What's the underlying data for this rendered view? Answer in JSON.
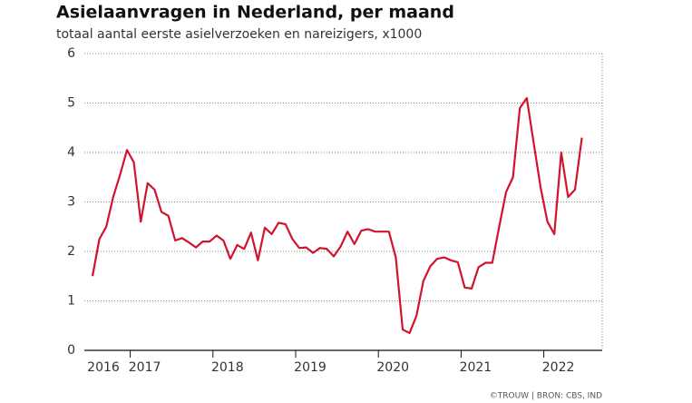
{
  "chart_data": {
    "type": "line",
    "title": "Asielaanvragen in Nederland, per maand",
    "subtitle": "totaal aantal eerste asielverzoeken en nareizigers, x1000",
    "source": "©TROUW | BRON: CBS, IND",
    "categories": [
      "2016",
      null,
      null,
      null,
      null,
      null,
      "2017",
      null,
      null,
      null,
      null,
      null,
      null,
      null,
      null,
      null,
      null,
      null,
      "2018",
      null,
      null,
      null,
      null,
      null,
      null,
      null,
      null,
      null,
      null,
      null,
      "2019",
      null,
      null,
      null,
      null,
      null,
      null,
      null,
      null,
      null,
      null,
      null,
      "2020",
      null,
      null,
      null,
      null,
      null,
      null,
      null,
      null,
      null,
      null,
      null,
      "2021",
      null,
      null,
      null,
      null,
      null,
      null,
      null,
      null,
      null,
      null,
      null,
      "2022",
      null,
      null,
      null,
      null,
      null
    ],
    "series": [
      {
        "name": "Asielaanvragen",
        "color": "#d0142c",
        "values": [
          1.5,
          2.25,
          2.5,
          3.1,
          3.55,
          4.05,
          3.8,
          2.6,
          3.38,
          3.25,
          2.8,
          2.72,
          2.22,
          2.27,
          2.18,
          2.08,
          2.2,
          2.2,
          2.32,
          2.22,
          1.85,
          2.13,
          2.05,
          2.38,
          1.82,
          2.48,
          2.35,
          2.58,
          2.55,
          2.25,
          2.07,
          2.08,
          1.97,
          2.07,
          2.05,
          1.9,
          2.1,
          2.4,
          2.15,
          2.42,
          2.45,
          2.4,
          2.4,
          2.4,
          1.88,
          0.42,
          0.35,
          0.7,
          1.4,
          1.7,
          1.85,
          1.88,
          1.82,
          1.78,
          1.27,
          1.25,
          1.68,
          1.77,
          1.77,
          2.5,
          3.2,
          3.5,
          4.9,
          5.1,
          4.2,
          3.3,
          2.6,
          2.35,
          4.0,
          3.1,
          3.25,
          4.3
        ]
      }
    ],
    "ylim": [
      0,
      6
    ],
    "yticks": [
      0,
      1,
      2,
      3,
      4,
      5,
      6
    ],
    "grid": true
  }
}
